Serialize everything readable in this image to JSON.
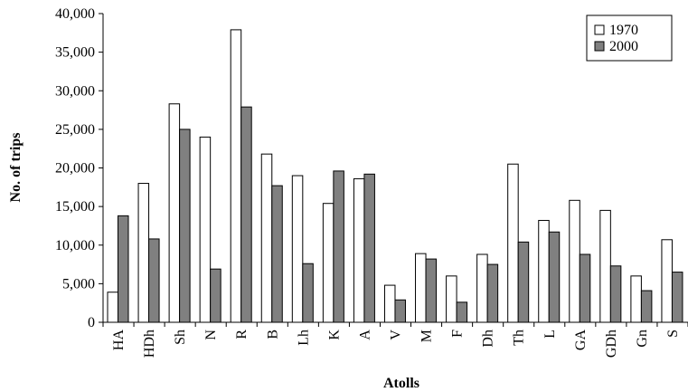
{
  "chart_data": {
    "type": "bar",
    "title": "",
    "xlabel": "Atolls",
    "ylabel": "No. of trips",
    "categories": [
      "HA",
      "HDh",
      "Sh",
      "N",
      "R",
      "B",
      "Lh",
      "K",
      "A",
      "V",
      "M",
      "F",
      "Dh",
      "Th",
      "L",
      "GA",
      "GDh",
      "Gn",
      "S"
    ],
    "series": [
      {
        "name": "1970",
        "color": "#ffffff",
        "values": [
          3900,
          18000,
          28300,
          24000,
          37900,
          21800,
          19000,
          15400,
          18600,
          4800,
          8900,
          6000,
          8800,
          20500,
          13200,
          15800,
          14500,
          6000,
          10700
        ]
      },
      {
        "name": "2000",
        "color": "#808080",
        "values": [
          13800,
          10800,
          25000,
          6900,
          27900,
          17700,
          7600,
          19600,
          19200,
          2900,
          8200,
          2600,
          7500,
          10400,
          11700,
          8800,
          7300,
          4100,
          6500
        ]
      }
    ],
    "ylim": [
      0,
      40000
    ],
    "yticks": [
      "0",
      "5,000",
      "10,000",
      "15,000",
      "20,000",
      "25,000",
      "30,000",
      "35,000",
      "40,000"
    ],
    "ytick_values": [
      0,
      5000,
      10000,
      15000,
      20000,
      25000,
      30000,
      35000,
      40000
    ],
    "grid": false,
    "legend_position": "top-right"
  }
}
